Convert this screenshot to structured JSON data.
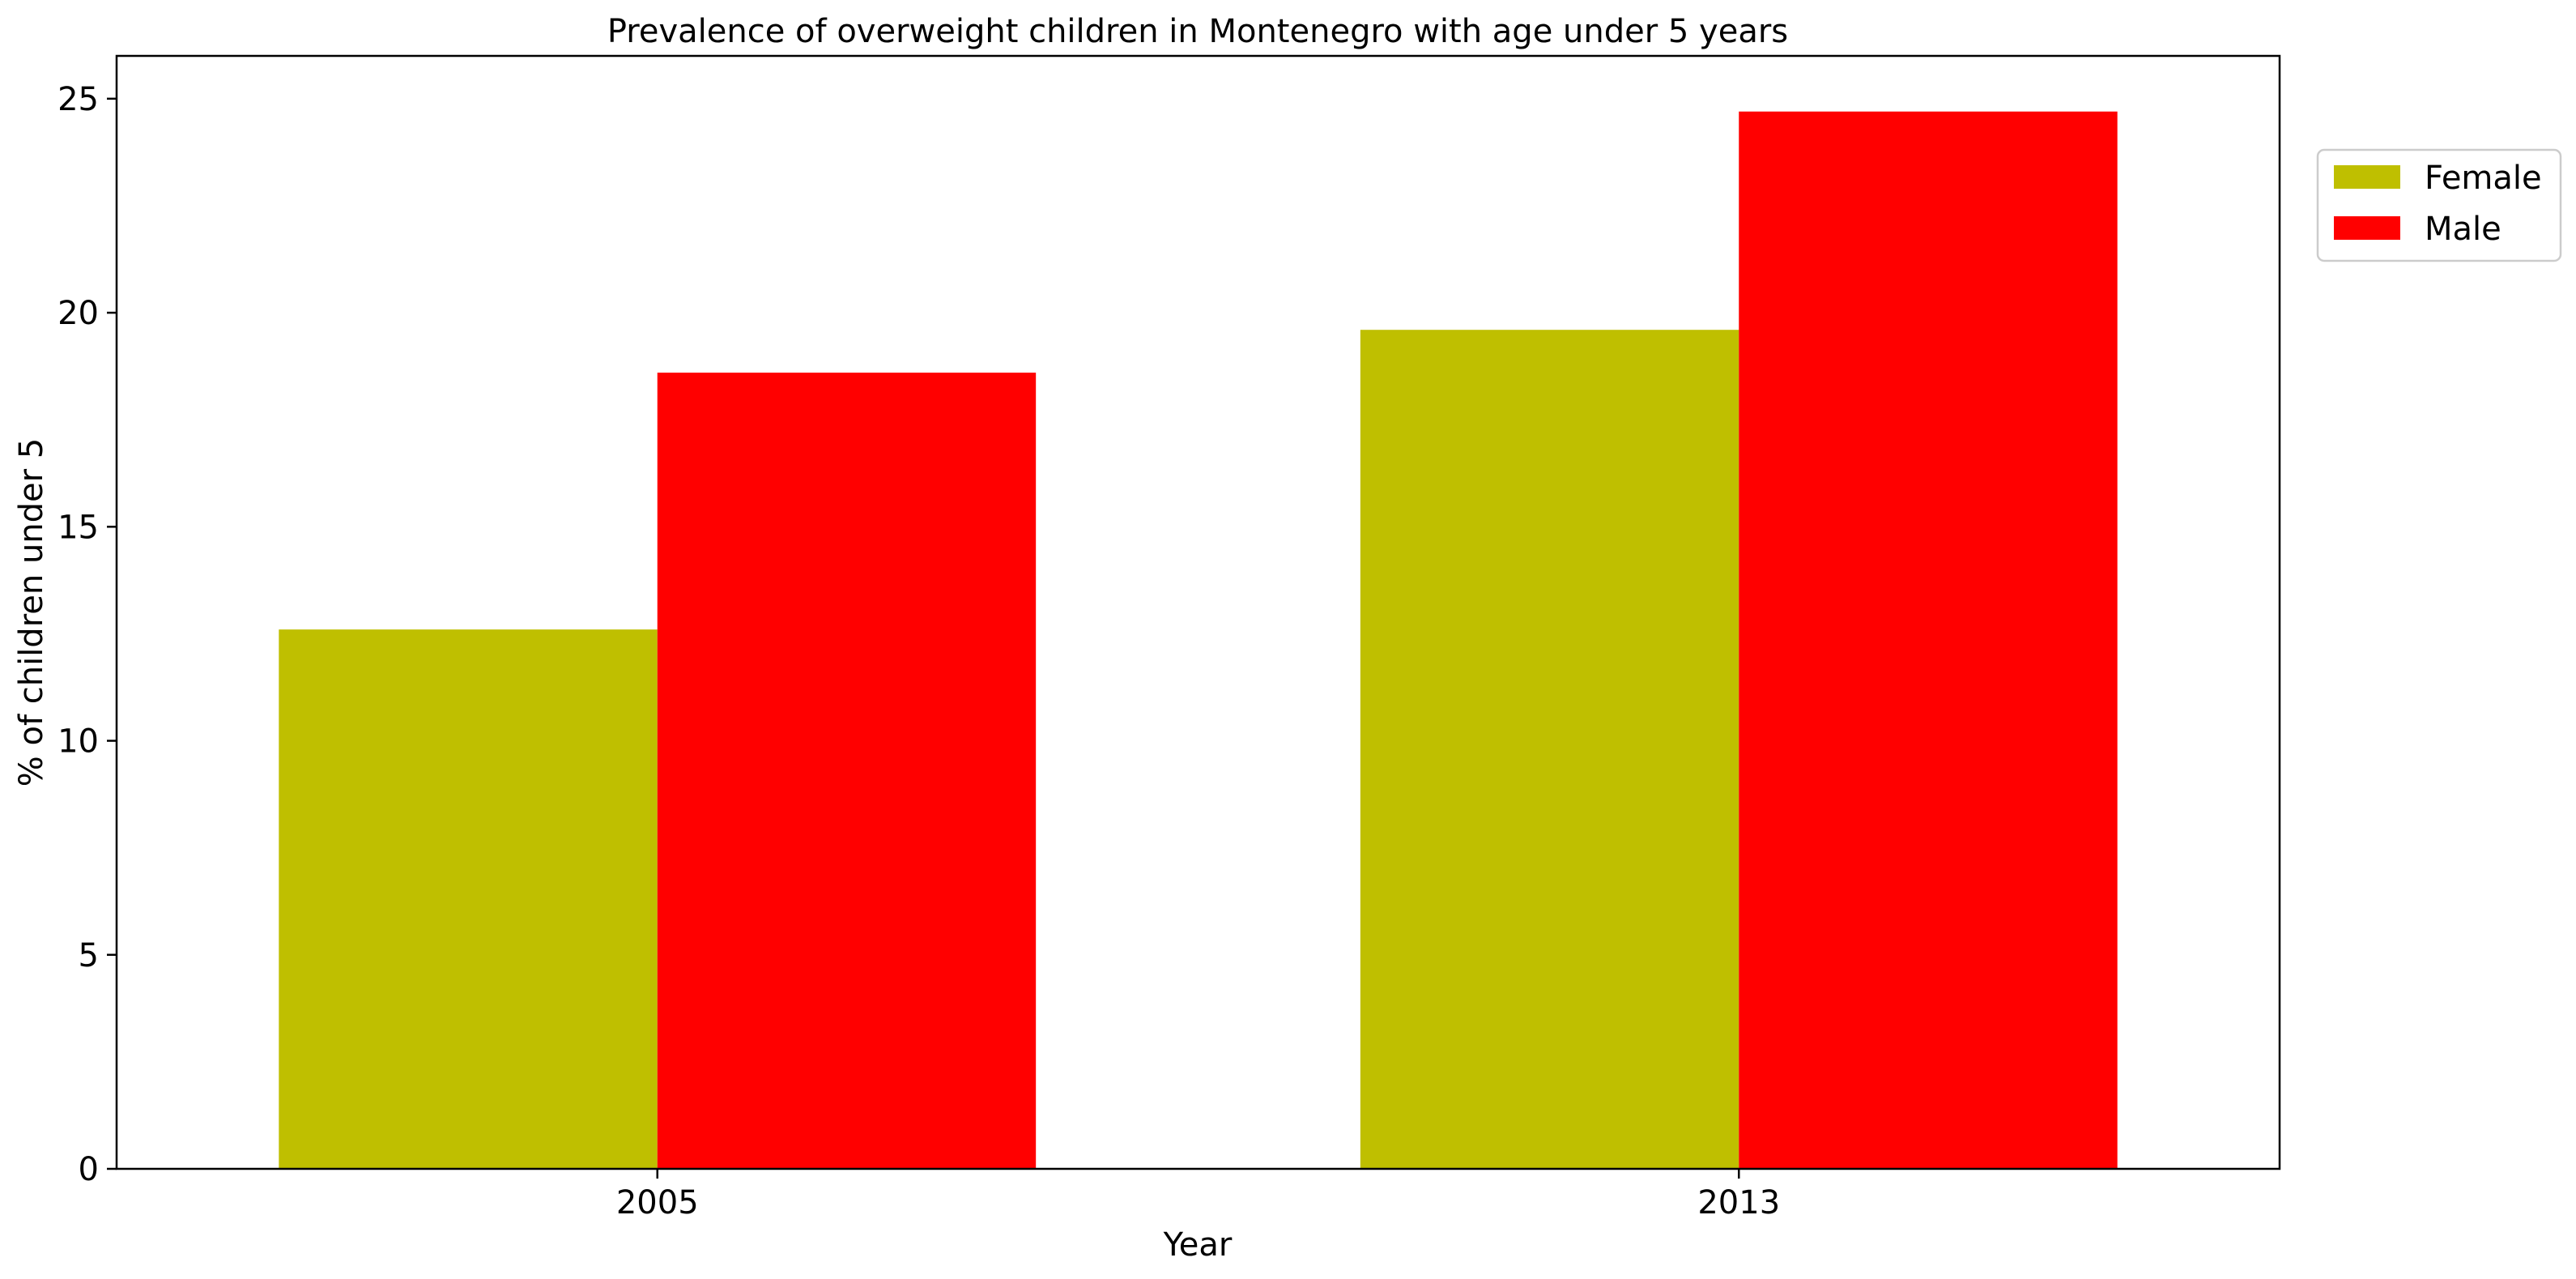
{
  "chart_data": {
    "type": "bar",
    "title": "Prevalence of overweight children in Montenegro with age under 5 years",
    "xlabel": "Year",
    "ylabel": "% of children under 5",
    "categories": [
      "2005",
      "2013"
    ],
    "series": [
      {
        "name": "Female",
        "color": "#bfbf00",
        "values": [
          12.6,
          19.6
        ]
      },
      {
        "name": "Male",
        "color": "#ff0000",
        "values": [
          18.6,
          24.7
        ]
      }
    ],
    "ylim": [
      0,
      26
    ],
    "yticks": [
      "0",
      "5",
      "10",
      "15",
      "20",
      "25"
    ],
    "grid": false,
    "legend": "top-right, outside"
  }
}
